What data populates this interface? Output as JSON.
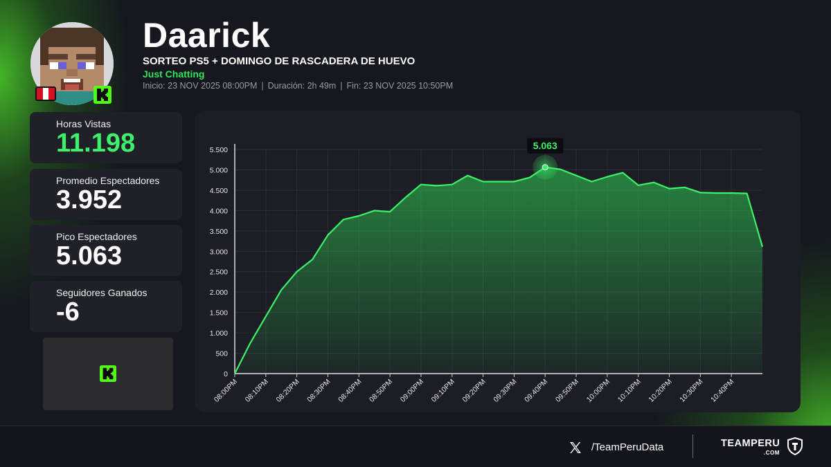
{
  "header": {
    "streamer": "Daarick",
    "title": "SORTEO PS5 + DOMINGO DE RASCADERA DE HUEVO",
    "category": "Just Chatting",
    "start": "Inicio: 23 NOV 2025 08:00PM",
    "duration": "Duración: 2h 49m",
    "end": "Fin: 23 NOV 2025 10:50PM",
    "separator": "|"
  },
  "stats": [
    {
      "label": "Horas Vistas",
      "value": "11.198",
      "highlight": true
    },
    {
      "label": "Promedio Espectadores",
      "value": "3.952",
      "highlight": false
    },
    {
      "label": "Pico Espectadores",
      "value": "5.063",
      "highlight": false
    },
    {
      "label": "Seguidores Ganados",
      "value": "-6",
      "highlight": false
    }
  ],
  "icons": {
    "platform": "kick-logo-icon",
    "flag": "peru-flag-icon",
    "social": "x-logo-icon",
    "brand": "shield-icon"
  },
  "colors": {
    "accent": "#35e35a",
    "line": "#3df26a",
    "panel": "#1d1e25",
    "background": "#16171f"
  },
  "footer": {
    "handle": "/TeamPeruData",
    "brand": "TEAMPERU",
    "brand_sub": ".COM"
  },
  "chart_data": {
    "type": "area",
    "x": [
      "08:00PM",
      "08:05PM",
      "08:10PM",
      "08:15PM",
      "08:20PM",
      "08:25PM",
      "08:30PM",
      "08:35PM",
      "08:40PM",
      "08:45PM",
      "08:50PM",
      "08:55PM",
      "09:00PM",
      "09:05PM",
      "09:10PM",
      "09:15PM",
      "09:20PM",
      "09:25PM",
      "09:30PM",
      "09:35PM",
      "09:40PM",
      "09:45PM",
      "09:50PM",
      "09:55PM",
      "10:00PM",
      "10:05PM",
      "10:10PM",
      "10:15PM",
      "10:20PM",
      "10:25PM",
      "10:30PM",
      "10:35PM",
      "10:40PM",
      "10:45PM",
      "10:49PM"
    ],
    "values": [
      0,
      750,
      1400,
      2050,
      2500,
      2800,
      3400,
      3780,
      3870,
      4000,
      3970,
      4320,
      4640,
      4610,
      4640,
      4860,
      4710,
      4710,
      4710,
      4810,
      5063,
      5010,
      4860,
      4710,
      4830,
      4930,
      4620,
      4690,
      4540,
      4570,
      4440,
      4430,
      4430,
      4420,
      3110
    ],
    "xticks": [
      "08:00PM",
      "08:10PM",
      "08:20PM",
      "08:30PM",
      "08:40PM",
      "08:50PM",
      "09:00PM",
      "09:10PM",
      "09:20PM",
      "09:30PM",
      "09:40PM",
      "09:50PM",
      "10:00PM",
      "10:10PM",
      "10:20PM",
      "10:30PM",
      "10:40PM"
    ],
    "yticks": [
      0,
      500,
      1000,
      1500,
      2000,
      2500,
      3000,
      3500,
      4000,
      4500,
      5000,
      5500
    ],
    "ytick_labels": [
      "0",
      "500",
      "1.000",
      "1.500",
      "2.000",
      "2.500",
      "3.000",
      "3.500",
      "4.000",
      "4.500",
      "5.000",
      "5.500"
    ],
    "ylim": [
      0,
      5500
    ],
    "peak": {
      "x": "09:40PM",
      "value": 5063,
      "label": "5.063"
    },
    "grid": true,
    "title": "",
    "xlabel": "",
    "ylabel": ""
  }
}
